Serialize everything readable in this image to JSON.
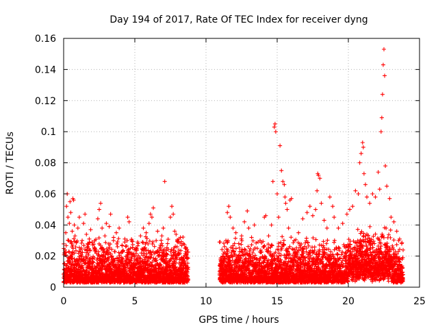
{
  "chart_data": {
    "type": "scatter",
    "title": "Day 194 of 2017, Rate Of TEC Index for receiver dyng",
    "xlabel": "GPS time / hours",
    "ylabel": "ROTI / TECUs",
    "xlim": [
      0,
      25
    ],
    "ylim": [
      0,
      0.16
    ],
    "xticks": [
      0,
      5,
      10,
      15,
      20,
      25
    ],
    "xtick_labels": [
      "0",
      "5",
      "10",
      "15",
      "20",
      "25"
    ],
    "yticks": [
      0,
      0.02,
      0.04,
      0.06,
      0.08,
      0.1,
      0.12,
      0.14,
      0.16
    ],
    "ytick_labels": [
      "0",
      "0.02",
      "0.04",
      "0.06",
      "0.08",
      "0.1",
      "0.12",
      "0.14",
      "0.16"
    ],
    "grid": true,
    "marker": "+",
    "color": "#ff0000",
    "data_gap_hours": [
      8.75,
      10.95
    ],
    "series": [
      {
        "name": "ROTI",
        "points": [
          [
            0.05,
            0.015
          ],
          [
            0.1,
            0.022
          ],
          [
            0.15,
            0.035
          ],
          [
            0.2,
            0.052
          ],
          [
            0.25,
            0.06
          ],
          [
            0.3,
            0.045
          ],
          [
            0.35,
            0.03
          ],
          [
            0.4,
            0.041
          ],
          [
            0.45,
            0.055
          ],
          [
            0.5,
            0.048
          ],
          [
            0.55,
            0.028
          ],
          [
            0.6,
            0.036
          ],
          [
            0.65,
            0.057
          ],
          [
            0.7,
            0.056
          ],
          [
            0.75,
            0.04
          ],
          [
            0.8,
            0.033
          ],
          [
            0.9,
            0.029
          ],
          [
            1.0,
            0.038
          ],
          [
            1.1,
            0.045
          ],
          [
            1.2,
            0.024
          ],
          [
            1.3,
            0.03
          ],
          [
            1.4,
            0.041
          ],
          [
            1.5,
            0.047
          ],
          [
            1.6,
            0.034
          ],
          [
            1.7,
            0.026
          ],
          [
            1.8,
            0.031
          ],
          [
            1.9,
            0.037
          ],
          [
            2.0,
            0.029
          ],
          [
            2.2,
            0.025
          ],
          [
            2.4,
            0.044
          ],
          [
            2.5,
            0.05
          ],
          [
            2.6,
            0.054
          ],
          [
            2.7,
            0.038
          ],
          [
            2.9,
            0.033
          ],
          [
            3.0,
            0.041
          ],
          [
            3.2,
            0.039
          ],
          [
            3.3,
            0.047
          ],
          [
            3.5,
            0.03
          ],
          [
            3.7,
            0.035
          ],
          [
            3.9,
            0.038
          ],
          [
            4.1,
            0.027
          ],
          [
            4.3,
            0.031
          ],
          [
            4.5,
            0.045
          ],
          [
            4.6,
            0.042
          ],
          [
            4.8,
            0.03
          ],
          [
            5.0,
            0.024
          ],
          [
            5.2,
            0.029
          ],
          [
            5.4,
            0.033
          ],
          [
            5.6,
            0.038
          ],
          [
            5.8,
            0.035
          ],
          [
            6.0,
            0.041
          ],
          [
            6.1,
            0.047
          ],
          [
            6.2,
            0.045
          ],
          [
            6.3,
            0.051
          ],
          [
            6.5,
            0.03
          ],
          [
            6.6,
            0.036
          ],
          [
            6.8,
            0.027
          ],
          [
            6.9,
            0.033
          ],
          [
            7.0,
            0.038
          ],
          [
            7.1,
            0.068
          ],
          [
            7.3,
            0.028
          ],
          [
            7.5,
            0.045
          ],
          [
            7.6,
            0.052
          ],
          [
            7.7,
            0.047
          ],
          [
            7.8,
            0.036
          ],
          [
            7.9,
            0.034
          ],
          [
            8.0,
            0.03
          ],
          [
            8.1,
            0.031
          ],
          [
            8.2,
            0.032
          ],
          [
            8.4,
            0.028
          ],
          [
            8.6,
            0.025
          ],
          [
            11.0,
            0.015
          ],
          [
            11.2,
            0.02
          ],
          [
            11.4,
            0.03
          ],
          [
            11.5,
            0.048
          ],
          [
            11.6,
            0.052
          ],
          [
            11.7,
            0.045
          ],
          [
            11.9,
            0.038
          ],
          [
            12.1,
            0.035
          ],
          [
            12.3,
            0.028
          ],
          [
            12.5,
            0.033
          ],
          [
            12.7,
            0.042
          ],
          [
            12.9,
            0.049
          ],
          [
            13.0,
            0.038
          ],
          [
            13.2,
            0.032
          ],
          [
            13.4,
            0.04
          ],
          [
            13.6,
            0.025
          ],
          [
            13.8,
            0.03
          ],
          [
            14.1,
            0.045
          ],
          [
            14.2,
            0.046
          ],
          [
            14.4,
            0.033
          ],
          [
            14.6,
            0.04
          ],
          [
            14.7,
            0.068
          ],
          [
            14.8,
            0.103
          ],
          [
            14.85,
            0.105
          ],
          [
            14.9,
            0.1
          ],
          [
            15.0,
            0.06
          ],
          [
            15.1,
            0.045
          ],
          [
            15.2,
            0.091
          ],
          [
            15.3,
            0.075
          ],
          [
            15.4,
            0.068
          ],
          [
            15.5,
            0.066
          ],
          [
            15.55,
            0.058
          ],
          [
            15.6,
            0.054
          ],
          [
            15.7,
            0.05
          ],
          [
            15.8,
            0.038
          ],
          [
            15.9,
            0.056
          ],
          [
            16.0,
            0.057
          ],
          [
            16.2,
            0.03
          ],
          [
            16.5,
            0.035
          ],
          [
            16.8,
            0.044
          ],
          [
            17.1,
            0.048
          ],
          [
            17.3,
            0.052
          ],
          [
            17.5,
            0.046
          ],
          [
            17.7,
            0.05
          ],
          [
            17.8,
            0.062
          ],
          [
            17.85,
            0.073
          ],
          [
            17.9,
            0.072
          ],
          [
            18.0,
            0.07
          ],
          [
            18.1,
            0.054
          ],
          [
            18.3,
            0.043
          ],
          [
            18.5,
            0.038
          ],
          [
            18.7,
            0.058
          ],
          [
            18.9,
            0.052
          ],
          [
            19.0,
            0.045
          ],
          [
            19.3,
            0.038
          ],
          [
            19.6,
            0.041
          ],
          [
            19.9,
            0.047
          ],
          [
            20.1,
            0.05
          ],
          [
            20.3,
            0.052
          ],
          [
            20.5,
            0.062
          ],
          [
            20.7,
            0.06
          ],
          [
            20.8,
            0.08
          ],
          [
            20.9,
            0.086
          ],
          [
            21.0,
            0.093
          ],
          [
            21.05,
            0.09
          ],
          [
            21.1,
            0.073
          ],
          [
            21.2,
            0.066
          ],
          [
            21.3,
            0.058
          ],
          [
            21.5,
            0.054
          ],
          [
            21.7,
            0.06
          ],
          [
            21.9,
            0.058
          ],
          [
            22.1,
            0.074
          ],
          [
            22.2,
            0.063
          ],
          [
            22.3,
            0.1
          ],
          [
            22.35,
            0.109
          ],
          [
            22.4,
            0.124
          ],
          [
            22.45,
            0.143
          ],
          [
            22.5,
            0.153
          ],
          [
            22.55,
            0.136
          ],
          [
            22.6,
            0.078
          ],
          [
            22.7,
            0.065
          ],
          [
            22.9,
            0.057
          ],
          [
            23.0,
            0.045
          ],
          [
            23.2,
            0.042
          ],
          [
            23.4,
            0.036
          ],
          [
            23.6,
            0.031
          ],
          [
            23.75,
            0.028
          ]
        ]
      }
    ]
  }
}
